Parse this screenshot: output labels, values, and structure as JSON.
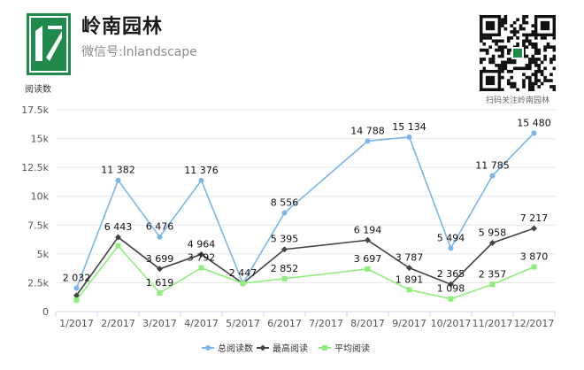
{
  "header": {
    "brand_name": "岭南园林",
    "wechat_id": "微信号:lnlandscape",
    "qr_caption": "扫码关注岭南园林",
    "logo_icon": "lingnan-logo-icon",
    "qr_icon": "qr-code-icon"
  },
  "chart_data": {
    "type": "line",
    "title": "",
    "ylabel": "阅读数",
    "xlabel": "",
    "ylim": [
      0,
      17500
    ],
    "yticks": [
      0,
      2500,
      5000,
      7500,
      10000,
      12500,
      15000,
      17500
    ],
    "ytick_labels": [
      "0",
      "2.5k",
      "5k",
      "7.5k",
      "10k",
      "12.5k",
      "15k",
      "17.5k"
    ],
    "grid": true,
    "legend_position": "bottom",
    "categories": [
      "1/2017",
      "2/2017",
      "3/2017",
      "4/2017",
      "5/2017",
      "6/2017",
      "7/2017",
      "8/2017",
      "9/2017",
      "10/2017",
      "11/2017",
      "12/2017"
    ],
    "series": [
      {
        "name": "总阅读数",
        "color": "#7cb5ec",
        "marker": "circle",
        "values": [
          2032,
          11382,
          6476,
          11376,
          2447,
          8556,
          null,
          14788,
          15134,
          5494,
          11785,
          15480
        ],
        "labels": [
          "2 032",
          "11 382",
          "6 476",
          "11 376",
          "2 447",
          "8 556",
          null,
          "14 788",
          "15 134",
          "5 494",
          "11 785",
          "15 480"
        ]
      },
      {
        "name": "最高阅读",
        "color": "#434348",
        "marker": "diamond",
        "values": [
          1400,
          6443,
          3699,
          4964,
          2447,
          5395,
          null,
          6194,
          3787,
          2365,
          5958,
          7217
        ],
        "labels": [
          null,
          "6 443",
          "3 699",
          "4 964",
          null,
          "5 395",
          null,
          "6 194",
          "3 787",
          "2 365",
          "5 958",
          "7 217"
        ]
      },
      {
        "name": "平均阅读",
        "color": "#90ed7d",
        "marker": "square",
        "values": [
          1000,
          5700,
          1619,
          3792,
          2447,
          2852,
          null,
          3697,
          1891,
          1098,
          2357,
          3870
        ],
        "labels": [
          null,
          null,
          "1 619",
          "3 792",
          null,
          "2 852",
          null,
          "3 697",
          "1 891",
          "1 098",
          "2 357",
          "3 870"
        ]
      }
    ]
  }
}
